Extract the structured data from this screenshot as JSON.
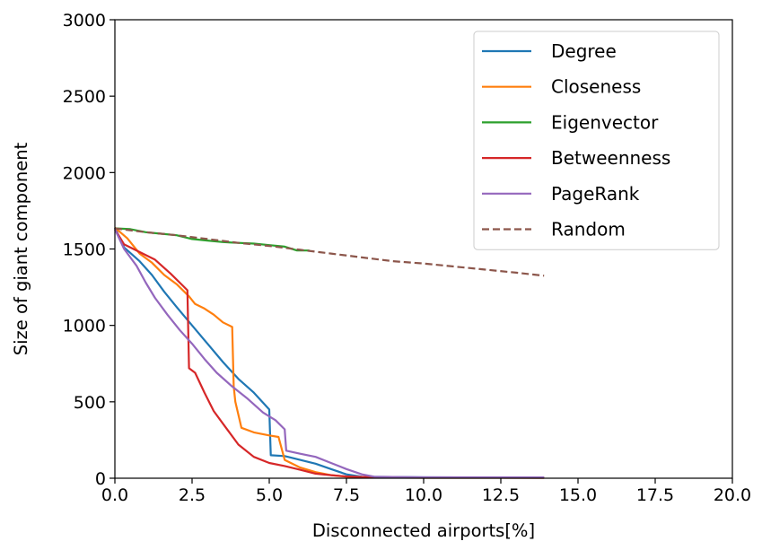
{
  "chart_data": {
    "type": "line",
    "title": "",
    "xlabel": "Disconnected airports[%]",
    "ylabel": "Size of giant component",
    "xlim": [
      0,
      20
    ],
    "ylim": [
      0,
      3000
    ],
    "xticks": [
      0,
      2.5,
      5,
      7.5,
      10,
      12.5,
      15,
      17.5,
      20
    ],
    "xtick_labels": [
      "0.0",
      "2.5",
      "5.0",
      "7.5",
      "10.0",
      "12.5",
      "15.0",
      "17.5",
      "20.0"
    ],
    "yticks": [
      0,
      500,
      1000,
      1500,
      2000,
      2500,
      3000
    ],
    "ytick_labels": [
      "0",
      "500",
      "1000",
      "1500",
      "2000",
      "2500",
      "3000"
    ],
    "grid": false,
    "legend_position": "top-right",
    "series": [
      {
        "name": "Degree",
        "color": "#1f77b4",
        "style": "solid",
        "points": [
          [
            0,
            1640
          ],
          [
            0.3,
            1510
          ],
          [
            0.8,
            1420
          ],
          [
            1.2,
            1330
          ],
          [
            1.6,
            1220
          ],
          [
            2.0,
            1120
          ],
          [
            2.5,
            1000
          ],
          [
            3.0,
            880
          ],
          [
            3.5,
            760
          ],
          [
            4.0,
            650
          ],
          [
            4.5,
            560
          ],
          [
            5.0,
            450
          ],
          [
            5.05,
            150
          ],
          [
            5.5,
            145
          ],
          [
            6.0,
            120
          ],
          [
            6.5,
            95
          ],
          [
            7.0,
            60
          ],
          [
            7.5,
            25
          ],
          [
            8.0,
            10
          ],
          [
            9.0,
            8
          ],
          [
            10.0,
            6
          ],
          [
            12.0,
            5
          ],
          [
            13.9,
            5
          ]
        ]
      },
      {
        "name": "Closeness",
        "color": "#ff7f0e",
        "style": "solid",
        "points": [
          [
            0,
            1640
          ],
          [
            0.4,
            1570
          ],
          [
            0.8,
            1470
          ],
          [
            1.2,
            1410
          ],
          [
            1.6,
            1330
          ],
          [
            2.0,
            1270
          ],
          [
            2.4,
            1190
          ],
          [
            2.6,
            1140
          ],
          [
            2.9,
            1110
          ],
          [
            3.2,
            1070
          ],
          [
            3.5,
            1020
          ],
          [
            3.8,
            990
          ],
          [
            3.85,
            600
          ],
          [
            3.9,
            500
          ],
          [
            4.1,
            330
          ],
          [
            4.5,
            300
          ],
          [
            5.0,
            280
          ],
          [
            5.3,
            270
          ],
          [
            5.5,
            120
          ],
          [
            6.0,
            70
          ],
          [
            6.5,
            40
          ],
          [
            7.0,
            20
          ],
          [
            7.5,
            10
          ],
          [
            8.0,
            5
          ],
          [
            10.0,
            3
          ],
          [
            13.9,
            3
          ]
        ]
      },
      {
        "name": "Eigenvector",
        "color": "#2ca02c",
        "style": "solid",
        "points": [
          [
            0,
            1635
          ],
          [
            0.5,
            1630
          ],
          [
            1.0,
            1610
          ],
          [
            1.5,
            1600
          ],
          [
            2.0,
            1590
          ],
          [
            2.5,
            1565
          ],
          [
            3.0,
            1555
          ],
          [
            3.5,
            1545
          ],
          [
            4.0,
            1540
          ],
          [
            4.5,
            1535
          ],
          [
            5.0,
            1525
          ],
          [
            5.5,
            1515
          ],
          [
            5.9,
            1490
          ],
          [
            6.3,
            1490
          ]
        ]
      },
      {
        "name": "Betweenness",
        "color": "#d62728",
        "style": "solid",
        "points": [
          [
            0,
            1630
          ],
          [
            0.3,
            1530
          ],
          [
            0.8,
            1480
          ],
          [
            1.3,
            1430
          ],
          [
            1.8,
            1340
          ],
          [
            2.2,
            1260
          ],
          [
            2.35,
            1230
          ],
          [
            2.4,
            720
          ],
          [
            2.6,
            690
          ],
          [
            2.9,
            560
          ],
          [
            3.2,
            440
          ],
          [
            3.6,
            330
          ],
          [
            4.0,
            220
          ],
          [
            4.5,
            140
          ],
          [
            5.0,
            100
          ],
          [
            5.5,
            80
          ],
          [
            6.0,
            55
          ],
          [
            6.5,
            30
          ],
          [
            7.0,
            20
          ],
          [
            7.5,
            12
          ],
          [
            8.0,
            8
          ],
          [
            9.0,
            5
          ],
          [
            13.9,
            3
          ]
        ]
      },
      {
        "name": "PageRank",
        "color": "#9467bd",
        "style": "solid",
        "points": [
          [
            0,
            1630
          ],
          [
            0.3,
            1500
          ],
          [
            0.7,
            1390
          ],
          [
            1.0,
            1280
          ],
          [
            1.3,
            1180
          ],
          [
            1.7,
            1070
          ],
          [
            2.1,
            970
          ],
          [
            2.5,
            880
          ],
          [
            2.9,
            780
          ],
          [
            3.3,
            690
          ],
          [
            3.8,
            600
          ],
          [
            4.3,
            520
          ],
          [
            4.8,
            430
          ],
          [
            5.2,
            380
          ],
          [
            5.5,
            320
          ],
          [
            5.55,
            180
          ],
          [
            6.0,
            160
          ],
          [
            6.5,
            140
          ],
          [
            7.0,
            100
          ],
          [
            7.5,
            60
          ],
          [
            8.0,
            25
          ],
          [
            8.4,
            10
          ],
          [
            9.0,
            8
          ],
          [
            10.0,
            6
          ],
          [
            13.9,
            5
          ]
        ]
      },
      {
        "name": "Random",
        "color": "#8c564b",
        "style": "dashed",
        "points": [
          [
            0,
            1635
          ],
          [
            1.0,
            1610
          ],
          [
            2.0,
            1590
          ],
          [
            3.0,
            1565
          ],
          [
            4.0,
            1540
          ],
          [
            5.0,
            1520
          ],
          [
            6.0,
            1495
          ],
          [
            7.0,
            1470
          ],
          [
            8.0,
            1445
          ],
          [
            9.0,
            1420
          ],
          [
            10.0,
            1405
          ],
          [
            11.0,
            1385
          ],
          [
            12.0,
            1365
          ],
          [
            13.0,
            1345
          ],
          [
            13.9,
            1325
          ]
        ]
      }
    ]
  }
}
